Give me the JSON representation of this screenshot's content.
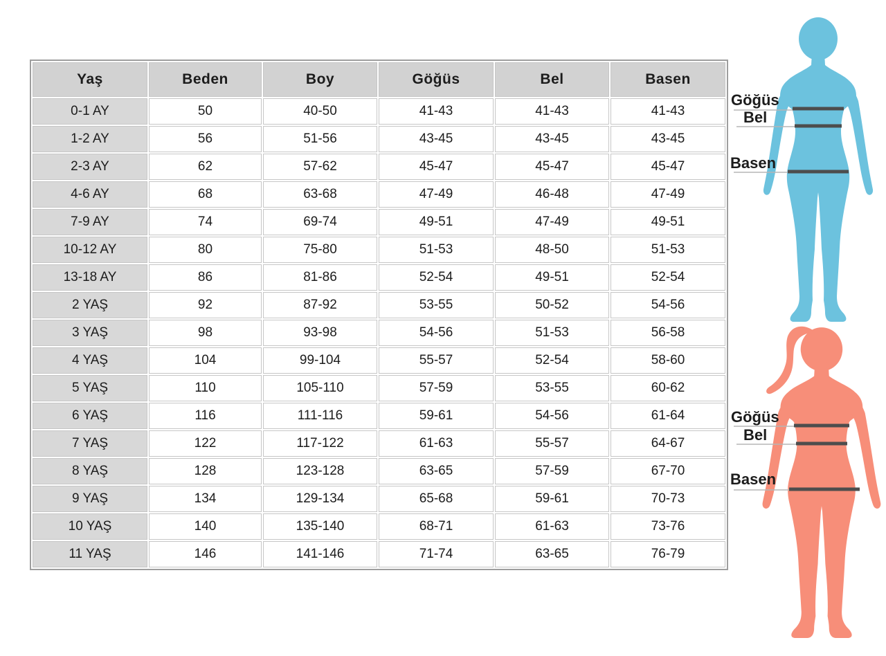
{
  "size_table": {
    "columns": [
      "Yaş",
      "Beden",
      "Boy",
      "Göğüs",
      "Bel",
      "Basen"
    ],
    "rows": [
      [
        "0-1 AY",
        "50",
        "40-50",
        "41-43",
        "41-43",
        "41-43"
      ],
      [
        "1-2 AY",
        "56",
        "51-56",
        "43-45",
        "43-45",
        "43-45"
      ],
      [
        "2-3 AY",
        "62",
        "57-62",
        "45-47",
        "45-47",
        "45-47"
      ],
      [
        "4-6 AY",
        "68",
        "63-68",
        "47-49",
        "46-48",
        "47-49"
      ],
      [
        "7-9 AY",
        "74",
        "69-74",
        "49-51",
        "47-49",
        "49-51"
      ],
      [
        "10-12 AY",
        "80",
        "75-80",
        "51-53",
        "48-50",
        "51-53"
      ],
      [
        "13-18 AY",
        "86",
        "81-86",
        "52-54",
        "49-51",
        "52-54"
      ],
      [
        "2 YAŞ",
        "92",
        "87-92",
        "53-55",
        "50-52",
        "54-56"
      ],
      [
        "3 YAŞ",
        "98",
        "93-98",
        "54-56",
        "51-53",
        "56-58"
      ],
      [
        "4 YAŞ",
        "104",
        "99-104",
        "55-57",
        "52-54",
        "58-60"
      ],
      [
        "5 YAŞ",
        "110",
        "105-110",
        "57-59",
        "53-55",
        "60-62"
      ],
      [
        "6 YAŞ",
        "116",
        "111-116",
        "59-61",
        "54-56",
        "61-64"
      ],
      [
        "7 YAŞ",
        "122",
        "117-122",
        "61-63",
        "55-57",
        "64-67"
      ],
      [
        "8 YAŞ",
        "128",
        "123-128",
        "63-65",
        "57-59",
        "67-70"
      ],
      [
        "9 YAŞ",
        "134",
        "129-134",
        "65-68",
        "59-61",
        "70-73"
      ],
      [
        "10 YAŞ",
        "140",
        "135-140",
        "68-71",
        "61-63",
        "73-76"
      ],
      [
        "11 YAŞ",
        "146",
        "141-146",
        "71-74",
        "63-65",
        "76-79"
      ]
    ]
  },
  "diagram": {
    "labels": {
      "chest": "Göğüs",
      "waist": "Bel",
      "hips": "Basen"
    }
  },
  "theme": {
    "figure_blue": "#6cc2de",
    "figure_salmon": "#f78e79",
    "measure_line": "#4d4d4d",
    "leader_line": "#b5b5b5",
    "header_bg": "#d2d2d2",
    "label_col_bg": "#d8d8d8",
    "table_border": "#9e9e9e",
    "grid_line": "#c6c6c6",
    "text_color": "#1c1c1c",
    "page_bg": "#ffffff"
  }
}
